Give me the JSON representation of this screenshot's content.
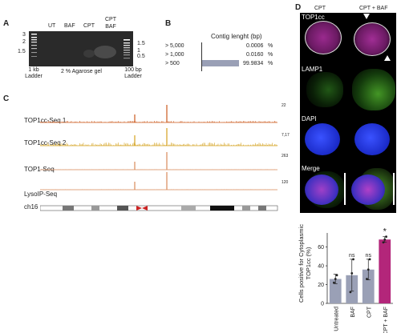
{
  "panels": {
    "a": "A",
    "b": "B",
    "c": "C",
    "d": "D"
  },
  "panel_a": {
    "lanes": [
      "UT",
      "BAF",
      "CPT",
      "CPT BAF"
    ],
    "left_ladder_ticks": [
      "3",
      "2",
      "1.5"
    ],
    "right_ladder_ticks": [
      "1.5",
      "1",
      "0.5"
    ],
    "left_ladder_caption": "1 kb Ladder",
    "gel_caption": "2 % Agarose gel",
    "right_ladder_caption": "100 bp Ladder"
  },
  "panel_b": {
    "title": "Contig lenght (bp)",
    "rows": [
      {
        "label": "> 5,000",
        "value": "0.0006",
        "unit": "%",
        "fraction": 6e-06
      },
      {
        "label": "> 1,000",
        "value": "0.0160",
        "unit": "%",
        "fraction": 0.00016
      },
      {
        "label": "> 500",
        "value": "99.9834",
        "unit": "%",
        "fraction": 0.999834
      }
    ],
    "bar_color": "#9aa0b6"
  },
  "panel_c": {
    "tracks": [
      {
        "name": "TOP1cc-Seq 1",
        "max": "22",
        "color": "#cc5a1e"
      },
      {
        "name": "TOP1cc-Seq 2",
        "max": "7,17",
        "color": "#d4a11e"
      },
      {
        "name": "TOP1-Seq",
        "max": "263",
        "color": "#d98a5a"
      },
      {
        "name": "LysoIP-Seq",
        "max": "120",
        "color": "#d98a5a"
      }
    ],
    "chromosome": "ch16"
  },
  "panel_d": {
    "col_headers": [
      "CPT",
      "CPT + BAF"
    ],
    "row_labels": [
      "TOP1cc",
      "LAMP1",
      "DAPI",
      "Merge"
    ],
    "chart_data": {
      "type": "bar",
      "categories": [
        "Untreated",
        "BAF",
        "CPT",
        "CPT + BAF"
      ],
      "values": [
        26,
        30,
        36,
        68
      ],
      "errors": [
        5,
        17,
        11,
        3
      ],
      "points": [
        [
          22,
          26,
          30
        ],
        [
          12,
          32,
          47
        ],
        [
          26,
          36,
          47
        ],
        [
          65,
          68,
          71
        ]
      ],
      "significance": [
        "",
        "ns",
        "ns",
        "*"
      ],
      "ylabel": "Cells positive for Cytoplasmic TOP1cc (%)",
      "ylim": [
        0,
        75
      ],
      "yticks": [
        "0",
        "20",
        "40",
        "60"
      ],
      "ytick_values": [
        0,
        20,
        40,
        60
      ],
      "colors": [
        "#9aa0b6",
        "#9aa0b6",
        "#9aa0b6",
        "#b3267a"
      ]
    }
  }
}
